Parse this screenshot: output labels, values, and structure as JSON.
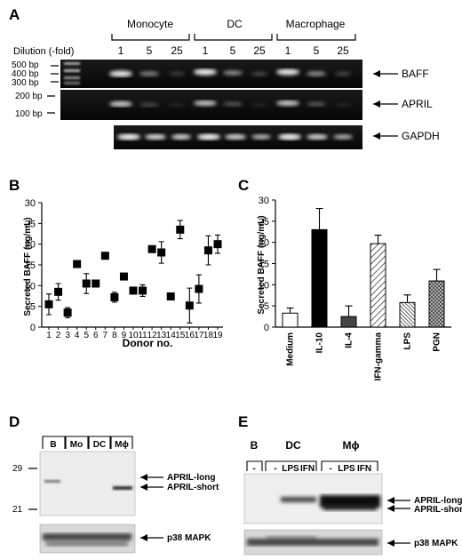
{
  "panel_a": {
    "label": "A",
    "groups": [
      "Monocyte",
      "DC",
      "Macrophage"
    ],
    "dilution_label": "Dilution (-fold)",
    "dilutions": [
      "1",
      "5",
      "25",
      "1",
      "5",
      "25",
      "1",
      "5",
      "25"
    ],
    "ladder_top": [
      "500 bp",
      "400 bp",
      "300 bp"
    ],
    "ladder_mid": [
      "200 bp",
      "100 bp"
    ],
    "bands": [
      "BAFF",
      "APRIL",
      "GAPDH"
    ]
  },
  "panel_b": {
    "label": "B",
    "chart_data": {
      "type": "scatter",
      "ylabel": "Secreted BAFF (ng/mL)",
      "xlabel": "Donor no.",
      "ylim": [
        0,
        30
      ],
      "yticks": [
        "0",
        "5",
        "10",
        "15",
        "20",
        "25",
        "30"
      ],
      "x": [
        1,
        2,
        3,
        4,
        5,
        6,
        7,
        8,
        9,
        10,
        11,
        12,
        13,
        14,
        15,
        16,
        17,
        18,
        19
      ],
      "xticks": [
        "1",
        "2",
        "3",
        "4",
        "5",
        "6",
        "7",
        "8",
        "9",
        "10",
        "11",
        "12",
        "13",
        "14",
        "15",
        "16",
        "17",
        "18",
        "19"
      ],
      "values": [
        5.5,
        8.5,
        3.5,
        15.2,
        10.5,
        10.5,
        17.2,
        7.2,
        12.2,
        8.8,
        8.8,
        18.8,
        18.0,
        7.4,
        23.5,
        5.2,
        9.2,
        18.5,
        20.0
      ],
      "errors": [
        2.5,
        2.0,
        1.2,
        0.8,
        2.4,
        0,
        0,
        1.2,
        0,
        0.8,
        1.4,
        0,
        2.6,
        0,
        2.2,
        4.2,
        3.4,
        3.5,
        2.2
      ]
    }
  },
  "panel_c": {
    "label": "C",
    "chart_data": {
      "type": "bar",
      "ylabel": "Secreted BAFF (ng/mL)",
      "ylim": [
        0,
        30
      ],
      "yticks": [
        "0",
        "5",
        "10",
        "15",
        "20",
        "25",
        "30"
      ],
      "categories": [
        "Medium",
        "IL-10",
        "IL-4",
        "IFN-gamma",
        "LPS",
        "PGN"
      ],
      "values": [
        3.3,
        23.0,
        2.5,
        19.7,
        5.8,
        10.9
      ],
      "errors": [
        1.2,
        5.0,
        2.5,
        2.0,
        1.8,
        2.7
      ],
      "fills": [
        "white",
        "black",
        "dark-gray",
        "diagonal-hatch",
        "dense-hatch",
        "cross-hatch"
      ]
    }
  },
  "panel_d": {
    "label": "D",
    "lanes": [
      "B",
      "Mo",
      "DC",
      "Mϕ"
    ],
    "markers": [
      "29",
      "21"
    ],
    "arrows": [
      "APRIL-long",
      "APRIL-short",
      "p38 MAPK"
    ]
  },
  "panel_e": {
    "label": "E",
    "groups": [
      "B",
      "DC",
      "Mϕ"
    ],
    "lane_labels": [
      "-",
      "-",
      "LPS",
      "IFN",
      "-",
      "LPS",
      "IFN"
    ],
    "arrows": [
      "APRIL-long",
      "APRIL-short",
      "p38 MAPK"
    ]
  }
}
